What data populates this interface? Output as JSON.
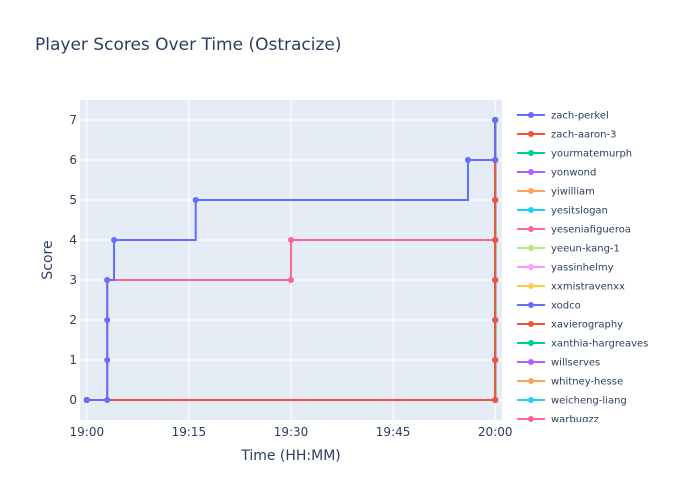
{
  "chart_data": {
    "type": "line",
    "line_shape": "step",
    "title": "Player Scores Over Time (Ostracize)",
    "xlabel": "Time (HH:MM)",
    "ylabel": "Score",
    "x_ticks": [
      "19:00",
      "19:15",
      "19:30",
      "19:45",
      "20:00"
    ],
    "xlim": [
      "18:59",
      "20:01"
    ],
    "y_ticks": [
      0,
      1,
      2,
      3,
      4,
      5,
      6,
      7
    ],
    "ylim": [
      -0.5,
      7.5
    ],
    "grid": true,
    "legend_position": "right",
    "series": [
      {
        "name": "zach-perkel",
        "color": "#636efa",
        "points": [
          [
            "19:00",
            0
          ],
          [
            "19:03",
            0
          ],
          [
            "19:03",
            1
          ],
          [
            "19:03",
            2
          ],
          [
            "19:03",
            3
          ],
          [
            "19:04",
            4
          ],
          [
            "19:16",
            5
          ],
          [
            "19:56",
            6
          ],
          [
            "20:00",
            6
          ],
          [
            "20:00",
            7
          ]
        ]
      },
      {
        "name": "zach-aaron-3",
        "color": "#ef553b",
        "points": [
          [
            "19:00",
            0
          ],
          [
            "20:00",
            0
          ],
          [
            "20:00",
            1
          ],
          [
            "20:00",
            2
          ],
          [
            "20:00",
            3
          ],
          [
            "20:00",
            4
          ],
          [
            "20:00",
            5
          ],
          [
            "20:00",
            6
          ],
          [
            "20:00",
            7
          ]
        ]
      },
      {
        "name": "yourmatemurph",
        "color": "#00cc96",
        "points": [
          [
            "19:00",
            0
          ],
          [
            "20:00",
            0
          ],
          [
            "20:00",
            1
          ],
          [
            "20:00",
            2
          ],
          [
            "20:00",
            3
          ],
          [
            "20:00",
            4
          ],
          [
            "20:00",
            5
          ],
          [
            "20:00",
            6
          ],
          [
            "20:00",
            7
          ]
        ]
      },
      {
        "name": "yonwond",
        "color": "#ab63fa",
        "points": [
          [
            "19:00",
            0
          ],
          [
            "20:00",
            0
          ],
          [
            "20:00",
            1
          ],
          [
            "20:00",
            2
          ],
          [
            "20:00",
            3
          ],
          [
            "20:00",
            4
          ],
          [
            "20:00",
            5
          ],
          [
            "20:00",
            6
          ],
          [
            "20:00",
            7
          ]
        ]
      },
      {
        "name": "yiwilliam",
        "color": "#ffa15a",
        "points": [
          [
            "19:00",
            0
          ],
          [
            "20:00",
            0
          ],
          [
            "20:00",
            1
          ],
          [
            "20:00",
            2
          ],
          [
            "20:00",
            3
          ],
          [
            "20:00",
            4
          ],
          [
            "20:00",
            5
          ],
          [
            "20:00",
            6
          ],
          [
            "20:00",
            7
          ]
        ]
      },
      {
        "name": "yesitslogan",
        "color": "#19d3f3",
        "points": [
          [
            "19:00",
            0
          ],
          [
            "20:00",
            0
          ],
          [
            "20:00",
            1
          ],
          [
            "20:00",
            2
          ],
          [
            "20:00",
            3
          ],
          [
            "20:00",
            4
          ],
          [
            "20:00",
            5
          ],
          [
            "20:00",
            6
          ],
          [
            "20:00",
            7
          ]
        ]
      },
      {
        "name": "yeseniafigueroa",
        "color": "#ff6692",
        "points": [
          [
            "19:00",
            0
          ],
          [
            "19:03",
            0
          ],
          [
            "19:03",
            3
          ],
          [
            "19:30",
            3
          ],
          [
            "19:30",
            4
          ],
          [
            "20:00",
            4
          ],
          [
            "20:00",
            7
          ]
        ]
      },
      {
        "name": "yeeun-kang-1",
        "color": "#b6e880",
        "points": [
          [
            "19:00",
            0
          ],
          [
            "20:00",
            0
          ],
          [
            "20:00",
            1
          ],
          [
            "20:00",
            2
          ],
          [
            "20:00",
            3
          ],
          [
            "20:00",
            4
          ],
          [
            "20:00",
            5
          ],
          [
            "20:00",
            6
          ],
          [
            "20:00",
            7
          ]
        ]
      },
      {
        "name": "yassinhelmy",
        "color": "#ff97ff",
        "points": [
          [
            "19:00",
            0
          ],
          [
            "20:00",
            0
          ],
          [
            "20:00",
            1
          ],
          [
            "20:00",
            2
          ],
          [
            "20:00",
            3
          ],
          [
            "20:00",
            4
          ],
          [
            "20:00",
            5
          ],
          [
            "20:00",
            6
          ],
          [
            "20:00",
            7
          ]
        ]
      },
      {
        "name": "xxmistravenxx",
        "color": "#fecb52",
        "points": [
          [
            "19:00",
            0
          ],
          [
            "20:00",
            0
          ],
          [
            "20:00",
            1
          ],
          [
            "20:00",
            2
          ],
          [
            "20:00",
            3
          ],
          [
            "20:00",
            4
          ],
          [
            "20:00",
            5
          ],
          [
            "20:00",
            6
          ],
          [
            "20:00",
            7
          ]
        ]
      },
      {
        "name": "xodco",
        "color": "#636efa",
        "points": [
          [
            "19:00",
            0
          ],
          [
            "20:00",
            0
          ],
          [
            "20:00",
            1
          ],
          [
            "20:00",
            2
          ],
          [
            "20:00",
            3
          ],
          [
            "20:00",
            4
          ],
          [
            "20:00",
            5
          ],
          [
            "20:00",
            6
          ],
          [
            "20:00",
            7
          ]
        ]
      },
      {
        "name": "xavierography",
        "color": "#ef553b",
        "points": [
          [
            "19:00",
            0
          ],
          [
            "20:00",
            0
          ],
          [
            "20:00",
            1
          ],
          [
            "20:00",
            2
          ],
          [
            "20:00",
            3
          ],
          [
            "20:00",
            4
          ],
          [
            "20:00",
            5
          ],
          [
            "20:00",
            6
          ],
          [
            "20:00",
            7
          ]
        ]
      },
      {
        "name": "xanthia-hargreaves",
        "color": "#00cc96",
        "points": [
          [
            "19:00",
            0
          ],
          [
            "20:00",
            0
          ],
          [
            "20:00",
            1
          ],
          [
            "20:00",
            2
          ],
          [
            "20:00",
            3
          ],
          [
            "20:00",
            4
          ],
          [
            "20:00",
            5
          ],
          [
            "20:00",
            6
          ],
          [
            "20:00",
            7
          ]
        ]
      },
      {
        "name": "willserves",
        "color": "#ab63fa",
        "points": [
          [
            "19:00",
            0
          ],
          [
            "20:00",
            0
          ],
          [
            "20:00",
            1
          ],
          [
            "20:00",
            2
          ],
          [
            "20:00",
            3
          ],
          [
            "20:00",
            4
          ],
          [
            "20:00",
            5
          ],
          [
            "20:00",
            6
          ],
          [
            "20:00",
            7
          ]
        ]
      },
      {
        "name": "whitney-hesse",
        "color": "#ffa15a",
        "points": [
          [
            "19:00",
            0
          ],
          [
            "20:00",
            0
          ],
          [
            "20:00",
            1
          ],
          [
            "20:00",
            2
          ],
          [
            "20:00",
            3
          ],
          [
            "20:00",
            4
          ],
          [
            "20:00",
            5
          ],
          [
            "20:00",
            6
          ],
          [
            "20:00",
            7
          ]
        ]
      },
      {
        "name": "weicheng-liang",
        "color": "#19d3f3",
        "points": [
          [
            "19:00",
            0
          ],
          [
            "20:00",
            0
          ],
          [
            "20:00",
            1
          ],
          [
            "20:00",
            2
          ],
          [
            "20:00",
            3
          ],
          [
            "20:00",
            4
          ],
          [
            "20:00",
            5
          ],
          [
            "20:00",
            6
          ],
          [
            "20:00",
            7
          ]
        ]
      },
      {
        "name": "warbugzz",
        "color": "#ff6692",
        "points": [
          [
            "19:00",
            0
          ],
          [
            "20:00",
            0
          ],
          [
            "20:00",
            1
          ],
          [
            "20:00",
            2
          ],
          [
            "20:00",
            3
          ],
          [
            "20:00",
            4
          ],
          [
            "20:00",
            5
          ],
          [
            "20:00",
            6
          ],
          [
            "20:00",
            7
          ]
        ]
      }
    ]
  }
}
